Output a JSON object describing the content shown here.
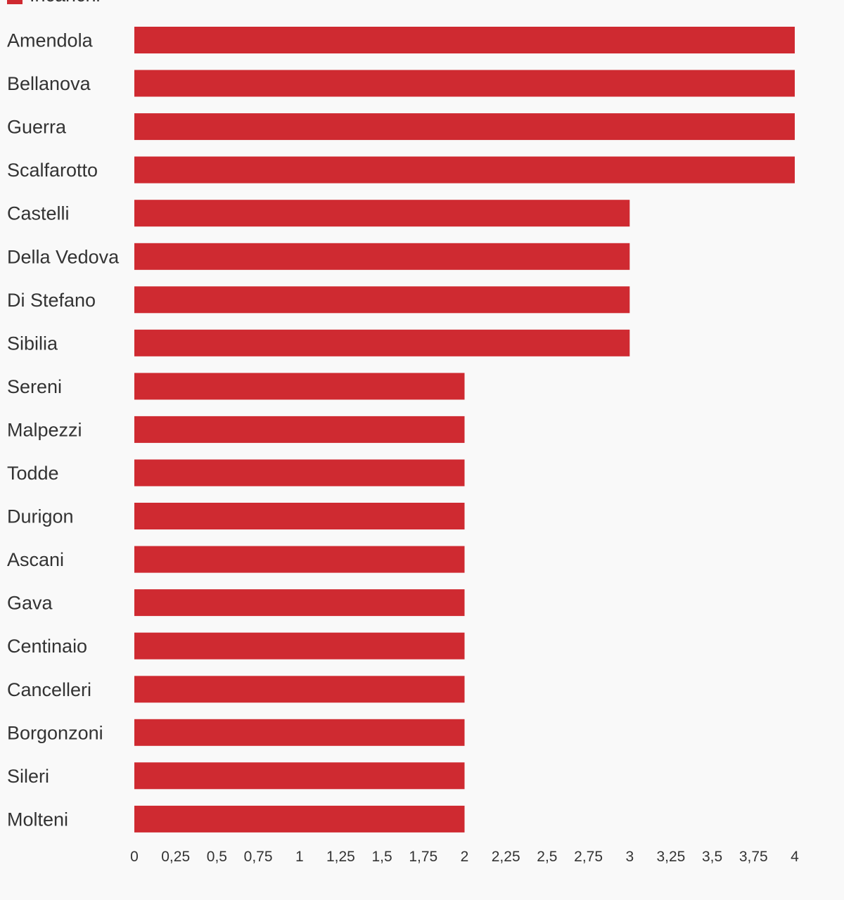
{
  "chart_data": {
    "type": "bar",
    "orientation": "horizontal",
    "categories": [
      "Amendola",
      "Bellanova",
      "Guerra",
      "Scalfarotto",
      "Castelli",
      "Della Vedova",
      "Di Stefano",
      "Sibilia",
      "Sereni",
      "Malpezzi",
      "Todde",
      "Durigon",
      "Ascani",
      "Gava",
      "Centinaio",
      "Cancelleri",
      "Borgonzoni",
      "Sileri",
      "Molteni"
    ],
    "series": [
      {
        "name": "Incarichi",
        "values": [
          4,
          4,
          4,
          4,
          3,
          3,
          3,
          3,
          2,
          2,
          2,
          2,
          2,
          2,
          2,
          2,
          2,
          2,
          2
        ]
      }
    ],
    "x_ticks": [
      "0",
      "0,25",
      "0,5",
      "0,75",
      "1",
      "1,25",
      "1,5",
      "1,75",
      "2",
      "2,25",
      "2,5",
      "2,75",
      "3",
      "3,25",
      "3,5",
      "3,75",
      "4"
    ],
    "xlim": [
      0,
      4
    ],
    "xlabel": "",
    "ylabel": "",
    "grid": false,
    "legend": "top-left",
    "colors": {
      "bar": "#cf2a31",
      "background": "#f9f9f9",
      "text": "#333333"
    }
  }
}
